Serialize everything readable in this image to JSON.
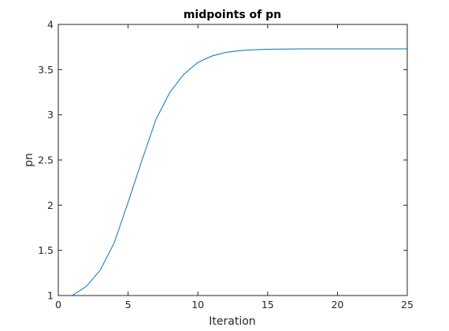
{
  "chart_data": {
    "type": "line",
    "title": "midpoints of pn",
    "xlabel": "Iteration",
    "ylabel": "pn",
    "xlim": [
      0,
      25
    ],
    "ylim": [
      1,
      4
    ],
    "xticks": [
      "0",
      "5",
      "10",
      "15",
      "20",
      "25"
    ],
    "yticks": [
      "1",
      "1.5",
      "2",
      "2.5",
      "3",
      "3.5",
      "4"
    ],
    "grid": false,
    "legend": "none",
    "line_color": "#0072bd",
    "series": [
      {
        "x": [
          1,
          2,
          3,
          4,
          5,
          6,
          7,
          8,
          9,
          10,
          11,
          12,
          13,
          14,
          15,
          16,
          17,
          18,
          19,
          20,
          21,
          22,
          23,
          24,
          25
        ],
        "y": [
          1.0,
          1.1,
          1.28,
          1.58,
          2.03,
          2.5,
          2.95,
          3.25,
          3.45,
          3.58,
          3.65,
          3.69,
          3.71,
          3.72,
          3.725,
          3.728,
          3.729,
          3.73,
          3.73,
          3.73,
          3.73,
          3.73,
          3.73,
          3.73,
          3.73
        ]
      }
    ]
  }
}
